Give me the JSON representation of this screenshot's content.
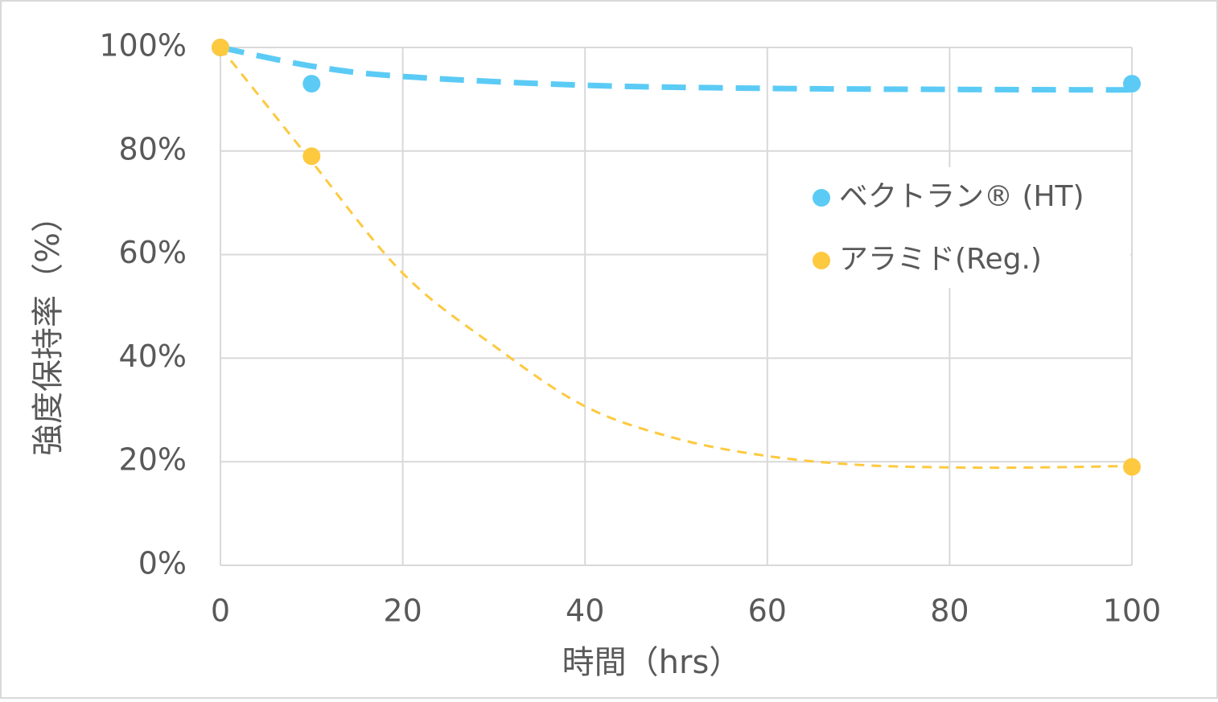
{
  "chart_data": {
    "type": "scatter",
    "xlabel": "時間（hrs）",
    "ylabel": "強度保持率（%）",
    "xlim": [
      0,
      100
    ],
    "xticks": [
      0,
      20,
      40,
      60,
      80,
      100
    ],
    "ylim": [
      0,
      100
    ],
    "yticks": [
      {
        "value": 0,
        "label": "0%"
      },
      {
        "value": 20,
        "label": "20%"
      },
      {
        "value": 40,
        "label": "40%"
      },
      {
        "value": 60,
        "label": "60%"
      },
      {
        "value": 80,
        "label": "80%"
      },
      {
        "value": 100,
        "label": "100%"
      }
    ],
    "grid": true,
    "legend": "right",
    "series": [
      {
        "name": "ベクトラン® (HT)",
        "color": "#5bcbf5",
        "x": [
          0,
          10,
          100
        ],
        "values": [
          100,
          93,
          93
        ],
        "trend": {
          "x": [
            0,
            10,
            20,
            40,
            60,
            80,
            100
          ],
          "values": [
            100,
            96.4,
            94.4,
            92.7,
            92.1,
            91.9,
            91.8
          ],
          "width": 7,
          "dash": "30 16"
        }
      },
      {
        "name": "アラミド(Reg.)",
        "color": "#fdc93f",
        "x": [
          0,
          10,
          100
        ],
        "values": [
          100,
          79,
          19
        ],
        "trend": {
          "x": [
            0,
            5,
            10,
            20,
            30,
            40,
            50,
            60,
            70,
            80,
            90,
            100
          ],
          "values": [
            100,
            89,
            78,
            56.4,
            42.4,
            30.7,
            24.5,
            21.1,
            19.4,
            18.9,
            18.9,
            19.2
          ],
          "width": 3,
          "dash": "12 9"
        }
      }
    ]
  }
}
